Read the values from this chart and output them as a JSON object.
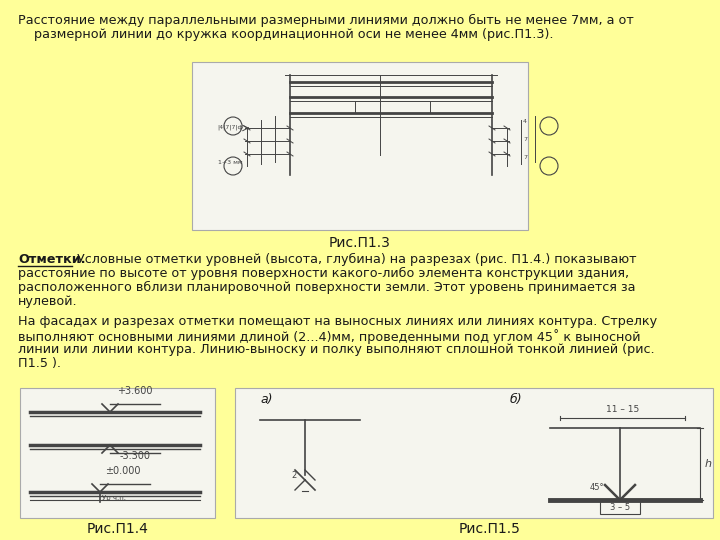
{
  "bg_color": "#FFFF99",
  "title_line1": "Расстояние между параллельными размерными линиями должно быть не менее 7мм, а от",
  "title_line2": "    размерной линии до кружка координационной оси не менее 4мм (рис.П1.3).",
  "fig1_caption": "Рис.П1.3",
  "otmetki_label": "Отметки.",
  "text1": " Условные отметки уровней (высота, глубина) на разрезах (рис. П1.4.) показывают",
  "text1b": "расстояние по высоте от уровня поверхности какого-либо элемента конструкции здания,",
  "text1c": "расположенного вблизи планировочной поверхности земли. Этот уровень принимается за",
  "text1d": "нулевой.",
  "text2a": "На фасадах и разрезах отметки помещают на выносных линиях или линиях контура. Стрелку",
  "text2b": "выполняют основными линиями длиной (2...4)мм, проведенными под углом 45˚ к выносной",
  "text2c": "линии или линии контура. Линию-выноску и полку выполняют сплошной тонкой линией (рис.",
  "text2d": "П1.5 ).",
  "fig2_caption": "Рис.П1.4",
  "fig3_caption": "Рис.П1.5",
  "label_a": "а)",
  "label_b": "б)",
  "dim_label": "11 – 15",
  "angle_label": "45°",
  "dim35": "3 – 5",
  "text_color": "#1a1a1a",
  "lc": "#444444",
  "fig_bg": "#f2f2ec",
  "fig_border": "#aaaaaa"
}
